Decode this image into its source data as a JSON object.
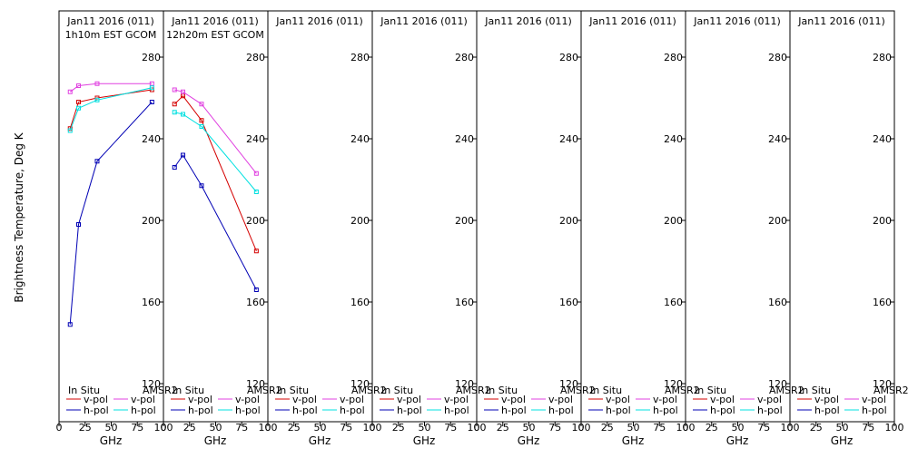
{
  "figure": {
    "ylabel": "Brightness Temperature, Deg K",
    "xlabel": "GHz",
    "legend": {
      "insitu_title": "In Situ",
      "amsr2_title": "AMSR2",
      "vpol": "v-pol",
      "hpol": "h-pol"
    },
    "colors": {
      "insitu_v": "#d40000",
      "insitu_h": "#0000b4",
      "amsr2_v": "#e040e0",
      "amsr2_h": "#00e0e0",
      "frame": "#000000"
    }
  },
  "chart_data": [
    {
      "type": "line",
      "title": "Jan11 2016 (011)",
      "subtitle": "1h10m EST GCOM",
      "xlabel": "GHz",
      "ylabel": "Brightness Temperature, Deg K",
      "xlim": [
        0,
        100
      ],
      "ylim": [
        100,
        300
      ],
      "xticks": [
        0,
        25,
        50,
        75,
        100
      ],
      "yticks": [
        120,
        160,
        200,
        240,
        280
      ],
      "grid": false,
      "series": [
        {
          "name": "In Situ v-pol",
          "x": [
            10.65,
            18.7,
            36.5,
            89.0
          ],
          "y": [
            245,
            258,
            260,
            264
          ]
        },
        {
          "name": "In Situ h-pol",
          "x": [
            10.65,
            18.7,
            36.5,
            89.0
          ],
          "y": [
            149,
            198,
            229,
            258
          ]
        },
        {
          "name": "AMSR2 v-pol",
          "x": [
            10.65,
            18.7,
            36.5,
            89.0
          ],
          "y": [
            263,
            266,
            267,
            267
          ]
        },
        {
          "name": "AMSR2 h-pol",
          "x": [
            10.65,
            18.7,
            36.5,
            89.0
          ],
          "y": [
            244,
            255,
            259,
            265
          ]
        }
      ]
    },
    {
      "type": "line",
      "title": "Jan11 2016 (011)",
      "subtitle": "12h20m EST GCOM",
      "xlabel": "GHz",
      "xlim": [
        0,
        100
      ],
      "ylim": [
        100,
        300
      ],
      "xticks": [
        0,
        25,
        50,
        75,
        100
      ],
      "yticks": [
        120,
        160,
        200,
        240,
        280
      ],
      "grid": false,
      "series": [
        {
          "name": "In Situ v-pol",
          "x": [
            10.65,
            18.7,
            36.5,
            89.0
          ],
          "y": [
            257,
            261,
            249,
            185
          ]
        },
        {
          "name": "In Situ h-pol",
          "x": [
            10.65,
            18.7,
            36.5,
            89.0
          ],
          "y": [
            226,
            232,
            217,
            166
          ]
        },
        {
          "name": "AMSR2 v-pol",
          "x": [
            10.65,
            18.7,
            36.5,
            89.0
          ],
          "y": [
            264,
            263,
            257,
            223
          ]
        },
        {
          "name": "AMSR2 h-pol",
          "x": [
            10.65,
            18.7,
            36.5,
            89.0
          ],
          "y": [
            253,
            252,
            246,
            214
          ]
        }
      ]
    },
    {
      "type": "line",
      "title": "Jan11 2016 (011)",
      "subtitle": "",
      "xlabel": "GHz",
      "xlim": [
        0,
        100
      ],
      "ylim": [
        100,
        300
      ],
      "xticks": [
        0,
        25,
        50,
        75,
        100
      ],
      "yticks": [
        120,
        160,
        200,
        240,
        280
      ],
      "grid": false,
      "series": []
    },
    {
      "type": "line",
      "title": "Jan11 2016 (011)",
      "subtitle": "",
      "xlabel": "GHz",
      "xlim": [
        0,
        100
      ],
      "ylim": [
        100,
        300
      ],
      "xticks": [
        0,
        25,
        50,
        75,
        100
      ],
      "yticks": [
        120,
        160,
        200,
        240,
        280
      ],
      "grid": false,
      "series": []
    },
    {
      "type": "line",
      "title": "Jan11 2016 (011)",
      "subtitle": "",
      "xlabel": "GHz",
      "xlim": [
        0,
        100
      ],
      "ylim": [
        100,
        300
      ],
      "xticks": [
        0,
        25,
        50,
        75,
        100
      ],
      "yticks": [
        120,
        160,
        200,
        240,
        280
      ],
      "grid": false,
      "series": []
    },
    {
      "type": "line",
      "title": "Jan11 2016 (011)",
      "subtitle": "",
      "xlabel": "GHz",
      "xlim": [
        0,
        100
      ],
      "ylim": [
        100,
        300
      ],
      "xticks": [
        0,
        25,
        50,
        75,
        100
      ],
      "yticks": [
        120,
        160,
        200,
        240,
        280
      ],
      "grid": false,
      "series": []
    },
    {
      "type": "line",
      "title": "Jan11 2016 (011)",
      "subtitle": "",
      "xlabel": "GHz",
      "xlim": [
        0,
        100
      ],
      "ylim": [
        100,
        300
      ],
      "xticks": [
        0,
        25,
        50,
        75,
        100
      ],
      "yticks": [
        120,
        160,
        200,
        240,
        280
      ],
      "grid": false,
      "series": []
    },
    {
      "type": "line",
      "title": "Jan11 2016 (011)",
      "subtitle": "",
      "xlabel": "GHz",
      "xlim": [
        0,
        100
      ],
      "ylim": [
        100,
        300
      ],
      "xticks": [
        0,
        25,
        50,
        75,
        100
      ],
      "yticks": [
        120,
        160,
        200,
        240,
        280
      ],
      "grid": false,
      "series": []
    }
  ]
}
